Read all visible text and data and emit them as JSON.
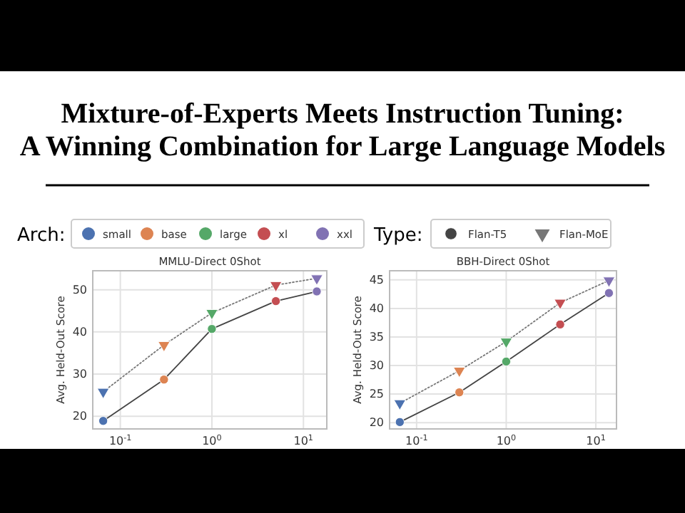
{
  "chart_data": [
    {
      "type": "other",
      "title": "Mixture-of-Experts Meets Instruction Tuning:\nA Winning Combination for Large Language Models",
      "legend_title": "Arch:",
      "categories": [
        "small",
        "base",
        "large",
        "xl",
        "xxl"
      ],
      "colors": [
        "#4c72b0",
        "#dd8452",
        "#55a868",
        "#c44e52",
        "#8172b3"
      ]
    },
    {
      "type": "line",
      "title": "MMLU-Direct 0Shot",
      "ylabel": "Avg. Held-Out Score",
      "x": [
        0.065,
        0.3,
        1,
        5,
        14
      ],
      "log": "x",
      "grid": true,
      "legend": false,
      "xlim": [
        0.05,
        18
      ],
      "xticks": [
        {
          "value": 0.1,
          "label": "10$^{-1}$"
        },
        {
          "value": 1,
          "label": "10$^{0}$"
        },
        {
          "value": 10,
          "label": "10$^{1}$"
        }
      ],
      "ylim": [
        17,
        54.5
      ],
      "yticks": [
        20,
        30,
        40,
        50
      ],
      "series": [
        {
          "color": "#444444",
          "line_style": "solid",
          "marker": "circle",
          "colors": [
            "#4c72b0",
            "#dd8452",
            "#55a868",
            "#c44e52",
            "#8172b3"
          ],
          "values": [
            18.9,
            28.7,
            40.7,
            47.3,
            49.6
          ]
        },
        {
          "color": "#777777",
          "line_style": "dotted",
          "marker": "triangle",
          "colors": [
            "#4c72b0",
            "#dd8452",
            "#55a868",
            "#c44e52",
            "#8172b3"
          ],
          "values": [
            25.8,
            36.9,
            44.5,
            51.1,
            52.7
          ]
        }
      ]
    },
    {
      "type": "line",
      "title": "BBH-Direct 0Shot",
      "ylabel": "Avg. Held-Out Score",
      "x": [
        0.065,
        0.3,
        1,
        4,
        14
      ],
      "log": "x",
      "grid": true,
      "legend": "top",
      "legend_title": "Type:",
      "xlim": [
        0.05,
        17
      ],
      "xticks": [
        {
          "value": 0.1,
          "label": "10$^{-1}$"
        },
        {
          "value": 1,
          "label": "10$^{0}$"
        },
        {
          "value": 10,
          "label": "10$^{1}$"
        }
      ],
      "ylim": [
        18.9,
        46.6
      ],
      "yticks": [
        20,
        25,
        30,
        35,
        40,
        45
      ],
      "series": [
        {
          "name": "Flan-T5",
          "color": "#444444",
          "line_style": "solid",
          "marker": "circle",
          "colors": [
            "#4c72b0",
            "#dd8452",
            "#55a868",
            "#c44e52",
            "#8172b3"
          ],
          "values": [
            20.1,
            25.3,
            30.7,
            37.2,
            42.7
          ]
        },
        {
          "name": "Flan-MoE",
          "color": "#777777",
          "line_style": "dotted",
          "marker": "triangle",
          "colors": [
            "#4c72b0",
            "#dd8452",
            "#55a868",
            "#c44e52",
            "#8172b3"
          ],
          "values": [
            23.4,
            29.1,
            34.2,
            41.0,
            44.9
          ]
        }
      ]
    }
  ]
}
